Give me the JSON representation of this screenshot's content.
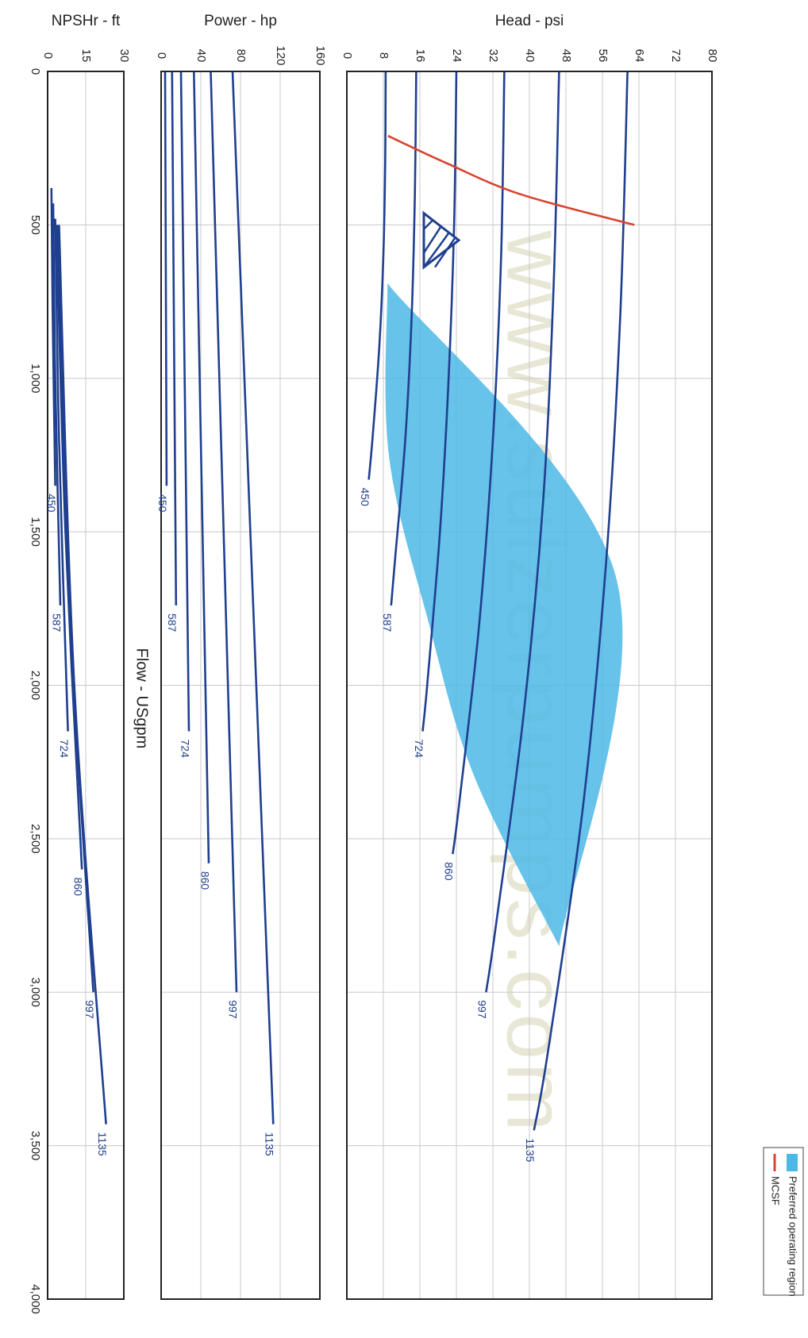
{
  "chart_data": {
    "type": "line",
    "orientation": "rotated-90-clockwise",
    "shared_axis": {
      "label": "Flow - USgpm",
      "range": [
        0,
        4000
      ],
      "ticks": [
        0,
        500,
        1000,
        1500,
        2000,
        2500,
        3000,
        3500,
        4000
      ],
      "tick_labels": [
        "0",
        "500",
        "1,000",
        "1,500",
        "2,000",
        "2,500",
        "3,000",
        "3,500",
        "4,000"
      ]
    },
    "watermark": "www.sulzerpumps.com",
    "panels": [
      {
        "id": "head",
        "ylabel": "Head - psi",
        "ylim": [
          0,
          80
        ],
        "ticks": [
          0,
          8,
          16,
          24,
          32,
          40,
          48,
          56,
          64,
          72,
          80
        ],
        "grid": true,
        "legend": {
          "position": "bottom-right",
          "entries": [
            {
              "label": "MCSF",
              "symbol": "line",
              "color": "#d9432f"
            },
            {
              "label": "Preferred operating region",
              "symbol": "area",
              "color": "#4cb8e6"
            }
          ]
        },
        "series": [
          {
            "name": "450",
            "color": "#1f3f8f",
            "x": [
              0,
              300,
              600,
              900,
              1200,
              1330
            ],
            "y": [
              8.5,
              8.4,
              8.0,
              7.1,
              5.6,
              4.8
            ]
          },
          {
            "name": "587",
            "color": "#1f3f8f",
            "x": [
              0,
              400,
              800,
              1200,
              1600,
              1740
            ],
            "y": [
              15.2,
              14.9,
              14.2,
              12.8,
              10.5,
              9.7
            ]
          },
          {
            "name": "724",
            "color": "#1f3f8f",
            "x": [
              0,
              500,
              1000,
              1500,
              2000,
              2150
            ],
            "y": [
              24.0,
              23.5,
              22.3,
              20.4,
              17.6,
              16.6
            ]
          },
          {
            "name": "860",
            "color": "#1f3f8f",
            "x": [
              0,
              600,
              1200,
              1800,
              2400,
              2550
            ],
            "y": [
              34.5,
              33.8,
              32.0,
              29.0,
              24.5,
              23.2
            ]
          },
          {
            "name": "997",
            "color": "#1f3f8f",
            "x": [
              0,
              700,
              1400,
              2100,
              2800,
              3000
            ],
            "y": [
              46.5,
              45.3,
              43.0,
              38.7,
              32.5,
              30.5
            ]
          },
          {
            "name": "1135",
            "color": "#1f3f8f",
            "x": [
              0,
              800,
              1600,
              2400,
              3200,
              3450
            ],
            "y": [
              61.5,
              59.9,
              56.8,
              51.7,
              44.0,
              41.0
            ]
          }
        ],
        "mcsf": {
          "name": "MCSF",
          "color": "#d9432f",
          "x": [
            210,
            300,
            400,
            500
          ],
          "y": [
            9.0,
            22.0,
            38.0,
            63.0
          ]
        },
        "preferred_region": {
          "name": "Preferred operating region",
          "color": "#4cb8e6",
          "upper_x": [
            690,
            1650,
            2850
          ],
          "upper_y": [
            8.9,
            59.0,
            46.5
          ],
          "lower_x": [
            690,
            1250,
            1800,
            2300,
            2850
          ],
          "lower_y": [
            8.9,
            9.2,
            18.0,
            28.0,
            46.5
          ]
        },
        "marker": {
          "name": "water-level-marker",
          "x": 550,
          "y": 20
        }
      },
      {
        "id": "power",
        "ylabel": "Power - hp",
        "ylim": [
          0,
          160
        ],
        "ticks": [
          0,
          40,
          80,
          120,
          160
        ],
        "grid": true,
        "series": [
          {
            "name": "450",
            "color": "#1f3f8f",
            "x": [
              0,
              1350
            ],
            "y": [
              4,
              5.5
            ]
          },
          {
            "name": "587",
            "color": "#1f3f8f",
            "x": [
              0,
              1740
            ],
            "y": [
              11,
              15
            ]
          },
          {
            "name": "724",
            "color": "#1f3f8f",
            "x": [
              0,
              2150
            ],
            "y": [
              20,
              28
            ]
          },
          {
            "name": "860",
            "color": "#1f3f8f",
            "x": [
              0,
              2580
            ],
            "y": [
              33,
              48
            ]
          },
          {
            "name": "997",
            "color": "#1f3f8f",
            "x": [
              0,
              3000
            ],
            "y": [
              50,
              76
            ]
          },
          {
            "name": "1135",
            "color": "#1f3f8f",
            "x": [
              0,
              3430
            ],
            "y": [
              72,
              113
            ]
          }
        ]
      },
      {
        "id": "npsh",
        "ylabel": "NPSHr - ft",
        "ylim": [
          0,
          30
        ],
        "ticks": [
          0,
          15,
          30
        ],
        "tick_labels": [
          "0",
          "15",
          "30"
        ],
        "grid": true,
        "series": [
          {
            "name": "450",
            "color": "#1f3f8f",
            "x": [
              380,
              800,
              1350
            ],
            "y": [
              1.5,
              2.0,
              3.0
            ]
          },
          {
            "name": "587",
            "color": "#1f3f8f",
            "x": [
              430,
              1000,
              1740
            ],
            "y": [
              2.2,
              3.0,
              5.0
            ]
          },
          {
            "name": "724",
            "color": "#1f3f8f",
            "x": [
              480,
              1200,
              2150
            ],
            "y": [
              3.0,
              4.5,
              8.0
            ]
          },
          {
            "name": "860",
            "color": "#1f3f8f",
            "x": [
              500,
              1500,
              2600
            ],
            "y": [
              3.5,
              7.0,
              13.5
            ]
          },
          {
            "name": "997",
            "color": "#1f3f8f",
            "x": [
              500,
              1800,
              3000
            ],
            "y": [
              4.0,
              9.0,
              18.0
            ]
          },
          {
            "name": "1135",
            "color": "#1f3f8f",
            "x": [
              500,
              2000,
              3430
            ],
            "y": [
              4.5,
              10.5,
              23.0
            ]
          }
        ]
      }
    ]
  }
}
